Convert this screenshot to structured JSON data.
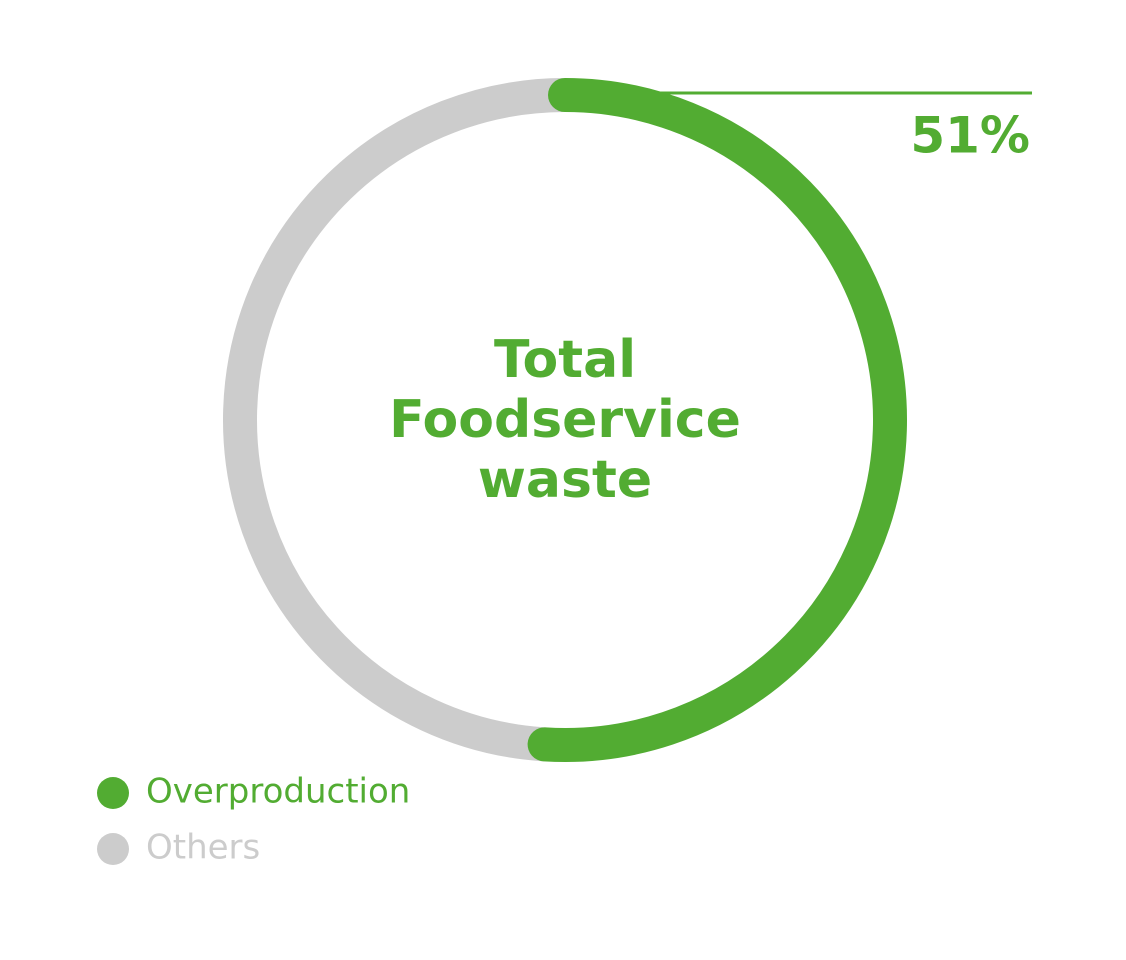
{
  "chart_data": {
    "type": "donut",
    "title": "Total Foodservice waste",
    "categories": [
      "Overproduction",
      "Others"
    ],
    "values": [
      51,
      49
    ],
    "value_labels": [
      "51%",
      null
    ],
    "colors": [
      "#52ac32",
      "#cccccc"
    ]
  }
}
